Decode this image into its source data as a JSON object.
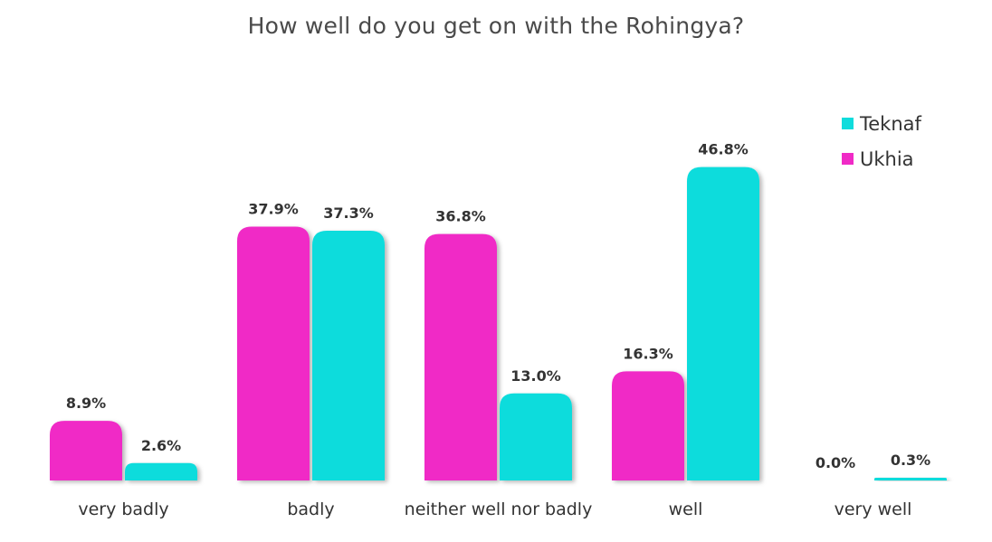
{
  "chart_data": {
    "type": "bar",
    "title": "How well do you get on with the Rohingya?",
    "categories": [
      "very badly",
      "badly",
      "neither well nor badly",
      "well",
      "very well"
    ],
    "series": [
      {
        "name": "Ukhia",
        "color": "#f02ac6",
        "values": [
          8.9,
          37.9,
          36.8,
          16.3,
          0.0
        ],
        "labels": [
          "8.9%",
          "37.9%",
          "36.8%",
          "16.3%",
          "0.0%"
        ]
      },
      {
        "name": "Teknaf",
        "color": "#10dcdc",
        "values": [
          2.6,
          37.3,
          13.0,
          46.8,
          0.3
        ],
        "labels": [
          "2.6%",
          "37.3%",
          "13.0%",
          "46.8%",
          "0.3%"
        ]
      }
    ],
    "ylim": [
      0,
      47
    ],
    "legend": {
      "placement": "right",
      "order": [
        "Teknaf",
        "Ukhia"
      ]
    },
    "grid": false
  }
}
